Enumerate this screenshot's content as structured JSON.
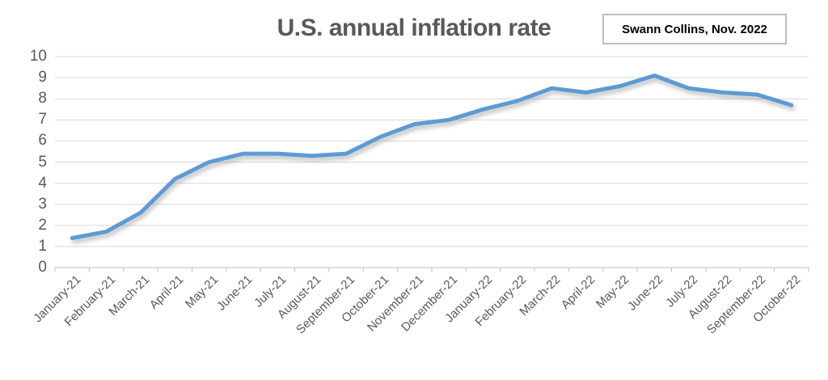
{
  "header": {
    "title": "U.S. annual inflation rate",
    "annotation": "Swann Collins, Nov. 2022"
  },
  "chart_data": {
    "type": "line",
    "title": "U.S. annual inflation rate",
    "annotation": "Swann Collins, Nov. 2022",
    "categories": [
      "January-21",
      "February-21",
      "March-21",
      "April-21",
      "May-21",
      "June-21",
      "July-21",
      "August-21",
      "September-21",
      "October-21",
      "November-21",
      "December-21",
      "January-22",
      "February-22",
      "March-22",
      "April-22",
      "May-22",
      "June-22",
      "July-22",
      "August-22",
      "September-22",
      "October-22"
    ],
    "series": [
      {
        "name": "U.S. annual inflation rate",
        "values": [
          1.4,
          1.7,
          2.6,
          4.2,
          5.0,
          5.4,
          5.4,
          5.3,
          5.4,
          6.2,
          6.8,
          7.0,
          7.5,
          7.9,
          8.5,
          8.3,
          8.6,
          9.1,
          8.5,
          8.3,
          8.2,
          7.7
        ]
      }
    ],
    "xlabel": "",
    "ylabel": "",
    "ylim": [
      0,
      10
    ],
    "y_ticks": [
      0,
      1,
      2,
      3,
      4,
      5,
      6,
      7,
      8,
      9,
      10
    ],
    "grid": "horizontal",
    "legend": "none",
    "colors": {
      "line": "#5b9bd5",
      "gridline": "#d9d9d9",
      "axis": "#bfbfbf",
      "tick_label": "#595959",
      "title": "#595959",
      "annotation_text": "#000000",
      "annotation_border": "#bfbfbf",
      "background": "#ffffff"
    }
  }
}
